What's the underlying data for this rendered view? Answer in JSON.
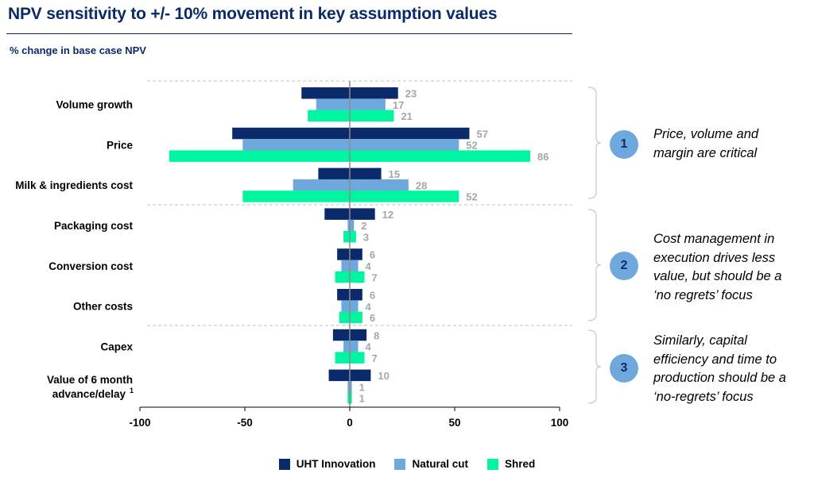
{
  "header": {
    "title": "NPV sensitivity to +/- 10% movement in key assumption values",
    "subtitle": "% change in base case NPV"
  },
  "colors": {
    "uht": "#0b2a6b",
    "natural": "#6fa8dc",
    "shred": "#00f5a0",
    "label_grey": "#a6a6a6",
    "circle": "#6fa8dc"
  },
  "chart_data": {
    "type": "bar",
    "orientation": "horizontal",
    "ylabel": "% change in base case NPV",
    "categories": [
      "Volume growth",
      "Price",
      "Milk & ingredients cost",
      "Packaging cost",
      "Conversion cost",
      "Other costs",
      "Capex",
      "Value of 6 month advance/delay"
    ],
    "category_footnote": "1",
    "xlim": [
      -100,
      100
    ],
    "xticks": [
      -100,
      -50,
      0,
      50,
      100
    ],
    "series": [
      {
        "name": "UHT Innovation",
        "color": "#0b2a6b",
        "low": [
          -23,
          -56,
          -15,
          -12,
          -6,
          -6,
          -8,
          -10
        ],
        "high": [
          23,
          57,
          15,
          12,
          6,
          6,
          8,
          10
        ],
        "labels": [
          23,
          57,
          15,
          12,
          6,
          6,
          8,
          10
        ]
      },
      {
        "name": "Natural cut",
        "color": "#6fa8dc",
        "low": [
          -16,
          -51,
          -27,
          -1,
          -4,
          -4,
          -3,
          -1
        ],
        "high": [
          17,
          52,
          28,
          2,
          4,
          4,
          4,
          1
        ],
        "labels": [
          17,
          52,
          28,
          2,
          4,
          4,
          4,
          1
        ]
      },
      {
        "name": "Shred",
        "color": "#00f5a0",
        "low": [
          -20,
          -86,
          -51,
          -3,
          -7,
          -5,
          -7,
          -1
        ],
        "high": [
          21,
          86,
          52,
          3,
          7,
          6,
          7,
          1
        ],
        "labels": [
          21,
          86,
          52,
          3,
          7,
          6,
          7,
          1
        ]
      }
    ],
    "legend_position": "bottom",
    "groups": [
      [
        0,
        2
      ],
      [
        3,
        5
      ],
      [
        6,
        7
      ]
    ]
  },
  "callouts": [
    {
      "num": "1",
      "text": "Price, volume and margin are critical"
    },
    {
      "num": "2",
      "text": "Cost management in execution drives less value, but should be a ‘no regrets’ focus"
    },
    {
      "num": "3",
      "text": "Similarly, capital efficiency and time to production should be a ‘no-regrets’ focus"
    }
  ]
}
